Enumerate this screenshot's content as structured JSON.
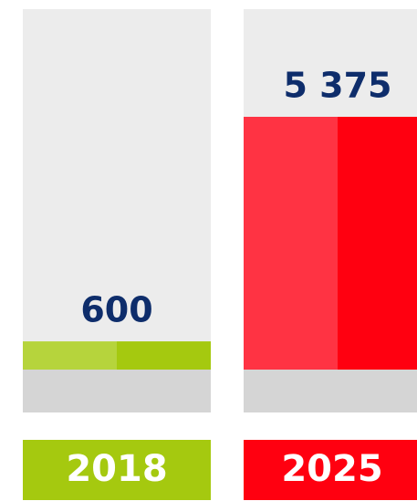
{
  "chart_data": {
    "type": "bar",
    "categories": [
      "2018",
      "2025"
    ],
    "values": [
      600,
      5375
    ],
    "value_labels": [
      "600",
      "5 375"
    ],
    "colors": [
      "#a5c90f",
      "#ff0010"
    ],
    "light_colors": [
      "#b6d43c",
      "#ff3343"
    ]
  }
}
